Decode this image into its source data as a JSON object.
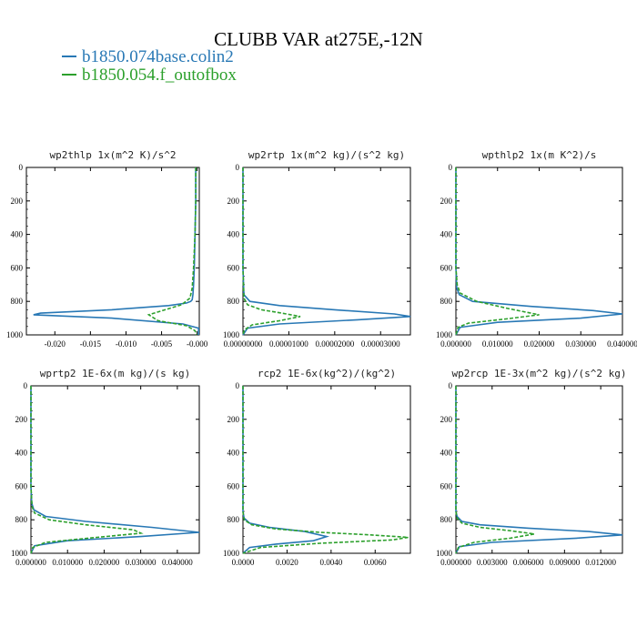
{
  "title": "CLUBB VAR at275E,-12N",
  "legend": [
    {
      "name": "b1850.074base.colin2",
      "color": "#2878b5",
      "dash": "solid"
    },
    {
      "name": "b1850.054.f_outofbox",
      "color": "#2ca02c",
      "dash": "dashed"
    }
  ],
  "chart_data": [
    {
      "type": "line",
      "title": "wp2thlp  1x(m^2 K)/s^2",
      "xlim": [
        -0.024,
        0.0003
      ],
      "ylim": [
        1000,
        0
      ],
      "xticks": [
        -0.02,
        -0.015,
        -0.01,
        -0.005,
        0.0
      ],
      "xtick_labels": [
        "-0.020",
        "-0.015",
        "-0.010",
        "-0.005",
        "-0.000"
      ],
      "yticks": [
        0,
        200,
        400,
        600,
        800,
        1000
      ],
      "ytick_labels": [
        "0",
        "200",
        "400",
        "600",
        "800",
        "1000"
      ],
      "series": [
        {
          "name": "b1850.074base.colin2",
          "x": [
            -0.0002,
            -0.0002,
            -0.0003,
            -0.0004,
            -0.0005,
            -0.0006,
            -0.0007,
            -0.0009,
            -0.0015,
            -0.004,
            -0.012,
            -0.022,
            -0.023,
            -0.012,
            -0.002,
            0.0002,
            0.0002
          ],
          "y": [
            0,
            200,
            400,
            600,
            700,
            760,
            790,
            800,
            810,
            825,
            850,
            870,
            880,
            900,
            935,
            960,
            1000
          ]
        },
        {
          "name": "b1850.054.f_outofbox",
          "x": [
            -0.0002,
            -0.0002,
            -0.0003,
            -0.0005,
            -0.0007,
            -0.001,
            -0.0022,
            -0.0045,
            -0.0068,
            -0.0055,
            -0.0015,
            -0.0003,
            -0.0001
          ],
          "y": [
            0,
            200,
            400,
            600,
            720,
            780,
            820,
            850,
            880,
            915,
            945,
            975,
            1000
          ]
        }
      ]
    },
    {
      "type": "line",
      "title": "wp2rtp  1x(m^2 kg)/(s^2 kg)",
      "xlim": [
        0.0,
        3.65e-05
      ],
      "ylim": [
        1000,
        0
      ],
      "xticks": [
        0.0,
        1e-05,
        2e-05,
        3e-05
      ],
      "xtick_labels": [
        "0.00000000",
        "0.00001000",
        "0.00002000",
        "0.00003000"
      ],
      "yticks": [
        0,
        200,
        400,
        600,
        800,
        1000
      ],
      "ytick_labels": [
        "0",
        "200",
        "400",
        "600",
        "800",
        "1000"
      ],
      "series": [
        {
          "name": "b1850.074base.colin2",
          "x": [
            0.0,
            0.0,
            2e-07,
            1.5e-06,
            8e-06,
            2e-05,
            3.3e-05,
            3.65e-05,
            2.5e-05,
            8e-06,
            1e-06,
            0.0
          ],
          "y": [
            0,
            600,
            760,
            800,
            825,
            850,
            875,
            890,
            910,
            935,
            960,
            1000
          ]
        },
        {
          "name": "b1850.054.f_outofbox",
          "x": [
            0.0,
            0.0,
            2e-07,
            1e-06,
            4e-06,
            8.5e-06,
            1.25e-05,
            8e-06,
            2e-06,
            3e-07,
            0.0
          ],
          "y": [
            0,
            600,
            780,
            820,
            850,
            870,
            890,
            915,
            940,
            970,
            1000
          ]
        }
      ]
    },
    {
      "type": "line",
      "title": "wpthlp2  1x(m K^2)/s",
      "xlim": [
        0.0,
        0.04
      ],
      "ylim": [
        1000,
        0
      ],
      "xticks": [
        0.0,
        0.01,
        0.02,
        0.03,
        0.04
      ],
      "xtick_labels": [
        "0.000000",
        "0.010000",
        "0.020000",
        "0.030000",
        "0.040000"
      ],
      "yticks": [
        0,
        200,
        400,
        600,
        800,
        1000
      ],
      "ytick_labels": [
        "0",
        "200",
        "400",
        "600",
        "800",
        "1000"
      ],
      "series": [
        {
          "name": "b1850.074base.colin2",
          "x": [
            0.0,
            0.0,
            0.0002,
            0.0008,
            0.004,
            0.018,
            0.033,
            0.04,
            0.03,
            0.01,
            0.001,
            0.0
          ],
          "y": [
            0,
            600,
            720,
            760,
            800,
            830,
            855,
            875,
            900,
            925,
            955,
            1000
          ]
        },
        {
          "name": "b1850.054.f_outofbox",
          "x": [
            0.0,
            0.0,
            0.0003,
            0.001,
            0.005,
            0.013,
            0.02,
            0.012,
            0.003,
            0.0005,
            0.0
          ],
          "y": [
            0,
            600,
            700,
            750,
            800,
            845,
            880,
            905,
            930,
            955,
            1000
          ]
        }
      ]
    },
    {
      "type": "line",
      "title": "wprtp2  1E-6x(m kg)/(s kg)",
      "xlim": [
        0.0,
        0.046
      ],
      "ylim": [
        1000,
        0
      ],
      "xticks": [
        0.0,
        0.01,
        0.02,
        0.03,
        0.04
      ],
      "xtick_labels": [
        "0.000000",
        "0.010000",
        "0.020000",
        "0.030000",
        "0.040000"
      ],
      "yticks": [
        0,
        200,
        400,
        600,
        800,
        1000
      ],
      "ytick_labels": [
        "0",
        "200",
        "400",
        "600",
        "800",
        "1000"
      ],
      "series": [
        {
          "name": "b1850.074base.colin2",
          "x": [
            0.0,
            0.0,
            0.0002,
            0.0008,
            0.004,
            0.015,
            0.033,
            0.046,
            0.03,
            0.01,
            0.001,
            0.0
          ],
          "y": [
            0,
            600,
            700,
            740,
            780,
            810,
            845,
            875,
            900,
            925,
            955,
            1000
          ]
        },
        {
          "name": "b1850.054.f_outofbox",
          "x": [
            0.0,
            0.0,
            0.0003,
            0.001,
            0.005,
            0.015,
            0.028,
            0.03,
            0.018,
            0.004,
            0.0005,
            0.0
          ],
          "y": [
            0,
            600,
            720,
            760,
            800,
            830,
            860,
            880,
            905,
            935,
            965,
            1000
          ]
        }
      ]
    },
    {
      "type": "line",
      "title": "rcp2  1E-6x(kg^2)/(kg^2)",
      "xlim": [
        0.0,
        0.0076
      ],
      "ylim": [
        1000,
        0
      ],
      "xticks": [
        0.0,
        0.002,
        0.004,
        0.006
      ],
      "xtick_labels": [
        "0.0000",
        "0.0020",
        "0.0040",
        "0.0060"
      ],
      "yticks": [
        0,
        200,
        400,
        600,
        800,
        1000
      ],
      "ytick_labels": [
        "0",
        "200",
        "400",
        "600",
        "800",
        "1000"
      ],
      "series": [
        {
          "name": "b1850.074base.colin2",
          "x": [
            0.0,
            0.0,
            5e-05,
            0.0003,
            0.0012,
            0.0028,
            0.0038,
            0.0032,
            0.0015,
            0.0003,
            0.0
          ],
          "y": [
            0,
            750,
            790,
            820,
            845,
            870,
            900,
            925,
            945,
            965,
            1000
          ]
        },
        {
          "name": "b1850.054.f_outofbox",
          "x": [
            0.0,
            0.0,
            5e-05,
            0.0004,
            0.0015,
            0.0035,
            0.0058,
            0.0075,
            0.0068,
            0.0035,
            0.0008,
            0.0
          ],
          "y": [
            0,
            750,
            800,
            830,
            855,
            875,
            890,
            905,
            920,
            940,
            965,
            1000
          ]
        }
      ]
    },
    {
      "type": "line",
      "title": "wp2rcp  1E-3x(m^2 kg)/(s^2 kg)",
      "xlim": [
        0.0,
        0.0138
      ],
      "ylim": [
        1000,
        0
      ],
      "xticks": [
        0.0,
        0.003,
        0.006,
        0.009,
        0.012
      ],
      "xtick_labels": [
        "0.000000",
        "0.003000",
        "0.006000",
        "0.009000",
        "0.012000"
      ],
      "yticks": [
        0,
        200,
        400,
        600,
        800,
        1000
      ],
      "ytick_labels": [
        "0",
        "200",
        "400",
        "600",
        "800",
        "1000"
      ],
      "series": [
        {
          "name": "b1850.074base.colin2",
          "x": [
            0.0,
            0.0,
            0.0001,
            0.0005,
            0.002,
            0.006,
            0.011,
            0.0138,
            0.01,
            0.003,
            0.0003,
            0.0
          ],
          "y": [
            0,
            750,
            780,
            810,
            830,
            850,
            870,
            890,
            910,
            935,
            960,
            1000
          ]
        },
        {
          "name": "b1850.054.f_outofbox",
          "x": [
            0.0,
            0.0,
            0.0001,
            0.0005,
            0.002,
            0.0045,
            0.0065,
            0.0045,
            0.0015,
            0.0002,
            0.0
          ],
          "y": [
            0,
            750,
            790,
            820,
            845,
            865,
            885,
            910,
            935,
            965,
            1000
          ]
        }
      ]
    }
  ]
}
